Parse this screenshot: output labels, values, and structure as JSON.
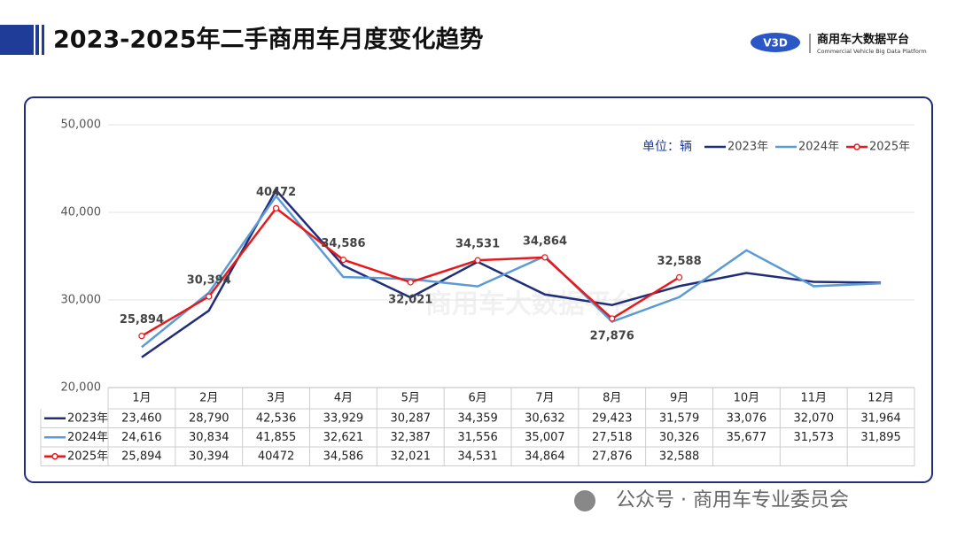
{
  "header": {
    "title": "2023-2025年二手商用车月度变化趋势",
    "logo_name": "商用车大数据平台",
    "logo_subtitle": "Commercial Vehicle Big Data Platform"
  },
  "chart_data": {
    "type": "line",
    "unit": "单位：辆",
    "categories": [
      "1月",
      "2月",
      "3月",
      "4月",
      "5月",
      "6月",
      "7月",
      "8月",
      "9月",
      "10月",
      "11月",
      "12月"
    ],
    "series": [
      {
        "name": "2023年",
        "color": "#1f2d7a",
        "values": [
          23460,
          28790,
          42536,
          33929,
          30287,
          34359,
          30632,
          29423,
          31579,
          33076,
          32070,
          31964
        ],
        "value_labels": [
          "23,460",
          "28,790",
          "42,536",
          "33,929",
          "30,287",
          "34,359",
          "30,632",
          "29,423",
          "31,579",
          "33,076",
          "32,070",
          "31,964"
        ]
      },
      {
        "name": "2024年",
        "color": "#5b9bd5",
        "values": [
          24616,
          30834,
          41855,
          32621,
          32387,
          31556,
          35007,
          27518,
          30326,
          35677,
          31573,
          31895
        ],
        "value_labels": [
          "24,616",
          "30,834",
          "41,855",
          "32,621",
          "32,387",
          "31,556",
          "35,007",
          "27,518",
          "30,326",
          "35,677",
          "31,573",
          "31,895"
        ]
      },
      {
        "name": "2025年",
        "color": "#e8191b",
        "markers": true,
        "data_labels": true,
        "values": [
          25894,
          30394,
          40472,
          34586,
          32021,
          34531,
          34864,
          27876,
          32588,
          null,
          null,
          null
        ],
        "value_labels": [
          "25,894",
          "30,394",
          "40472",
          "34,586",
          "32,021",
          "34,531",
          "34,864",
          "27,876",
          "32,588",
          null,
          null,
          null
        ]
      }
    ],
    "ylim": [
      20000,
      50000
    ],
    "yticks": [
      {
        "value": 20000,
        "label": "20,000"
      },
      {
        "value": 30000,
        "label": "30,000"
      },
      {
        "value": 40000,
        "label": "40,000"
      },
      {
        "value": 50000,
        "label": "50,000"
      }
    ],
    "grid": true
  },
  "footer": {
    "text": "公众号 · 商用车专业委员会"
  }
}
